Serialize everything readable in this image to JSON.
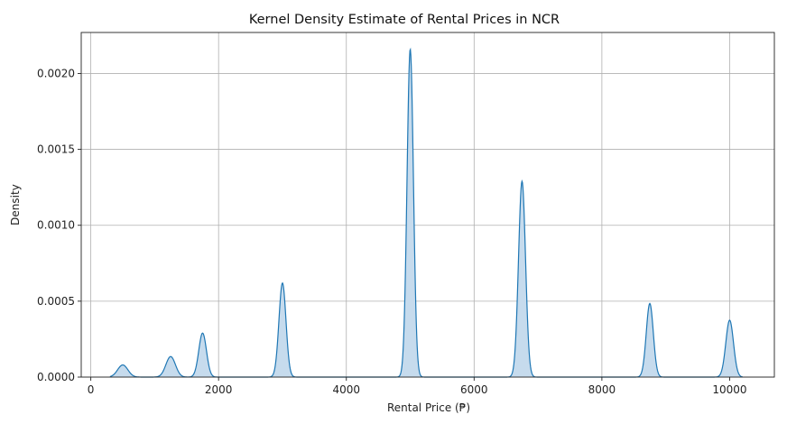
{
  "chart_data": {
    "type": "area",
    "title": "Kernel Density Estimate of Rental Prices in NCR",
    "xlabel": "Rental Price (₱)",
    "ylabel": "Density",
    "xlim": [
      -150,
      10700
    ],
    "ylim": [
      0,
      0.00227
    ],
    "x_ticks": [
      0,
      2000,
      4000,
      6000,
      8000,
      10000
    ],
    "x_tick_labels": [
      "0",
      "2000",
      "4000",
      "6000",
      "8000",
      "10000"
    ],
    "y_ticks": [
      0,
      0.0005,
      0.001,
      0.0015,
      0.002
    ],
    "y_tick_labels": [
      "0.0000",
      "0.0005",
      "0.0010",
      "0.0015",
      "0.0020"
    ],
    "grid": true,
    "colors": {
      "line": "#1f77b4",
      "fill": "#c6dbed",
      "grid": "#b0b0b0"
    },
    "curve_range": [
      300,
      10200
    ],
    "peaks": [
      {
        "x": 500,
        "height": 8e-05,
        "width": 80
      },
      {
        "x": 1250,
        "height": 0.000135,
        "width": 75
      },
      {
        "x": 1750,
        "height": 0.00029,
        "width": 60
      },
      {
        "x": 3000,
        "height": 0.00062,
        "width": 55
      },
      {
        "x": 5000,
        "height": 0.00216,
        "width": 50
      },
      {
        "x": 6750,
        "height": 0.00129,
        "width": 55
      },
      {
        "x": 8750,
        "height": 0.000485,
        "width": 55
      },
      {
        "x": 10000,
        "height": 0.000375,
        "width": 60
      }
    ]
  }
}
